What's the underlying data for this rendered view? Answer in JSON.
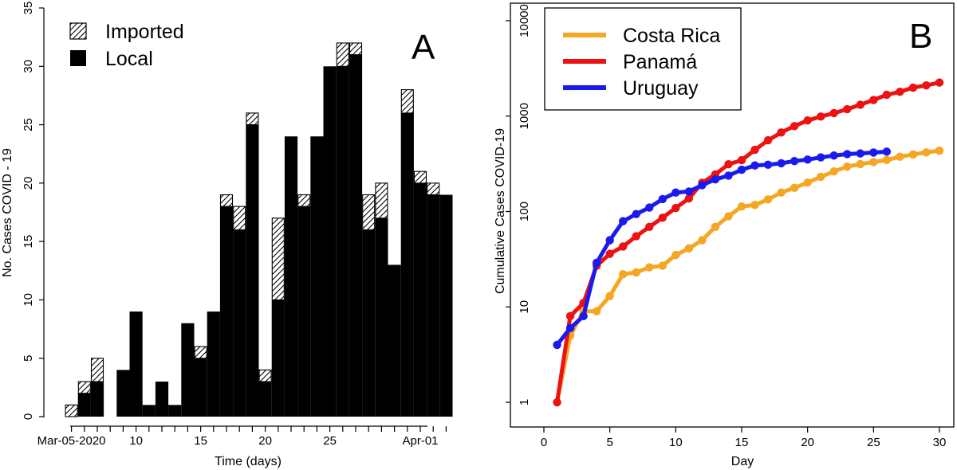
{
  "chart_data": [
    {
      "type": "bar",
      "panel_label": "A",
      "stacked": true,
      "xlabel": "Time (days)",
      "ylabel": "No. Cases COVID - 19",
      "ylim": [
        0,
        35
      ],
      "yticks": [
        "0",
        "5",
        "10",
        "15",
        "20",
        "25",
        "30",
        "35"
      ],
      "xtick_labels": [
        {
          "day_index": 0,
          "label": "Mar-05-2020"
        },
        {
          "day_index": 5,
          "label": "10"
        },
        {
          "day_index": 10,
          "label": "15"
        },
        {
          "day_index": 15,
          "label": "20"
        },
        {
          "day_index": 20,
          "label": "25"
        },
        {
          "day_index": 27,
          "label": "Apr-01"
        }
      ],
      "legend": {
        "placement": "top-left",
        "entries": [
          "Imported",
          "Local"
        ]
      },
      "series": [
        {
          "name": "Local",
          "fill": "#000000",
          "values": [
            0,
            2,
            3,
            0,
            4,
            9,
            1,
            3,
            1,
            8,
            5,
            9,
            18,
            16,
            25,
            3,
            10,
            24,
            18,
            24,
            30,
            30,
            31,
            16,
            17,
            13,
            26,
            20,
            19,
            19
          ]
        },
        {
          "name": "Imported",
          "fill": "hatched",
          "values": [
            1,
            1,
            2,
            0,
            0,
            0,
            0,
            0,
            0,
            0,
            1,
            0,
            1,
            2,
            1,
            1,
            7,
            0,
            1,
            0,
            0,
            2,
            1,
            3,
            3,
            0,
            2,
            1,
            1,
            0
          ]
        }
      ]
    },
    {
      "type": "line",
      "panel_label": "B",
      "y_scale": "log",
      "xlabel": "Day",
      "ylabel": "Cumulative Cases COVID-19",
      "xlim": [
        0,
        30
      ],
      "ylim": [
        1,
        10000
      ],
      "xticks": [
        "0",
        "5",
        "10",
        "15",
        "20",
        "25",
        "30"
      ],
      "yticks": [
        "1",
        "10",
        "100",
        "1000",
        "10000"
      ],
      "legend": {
        "placement": "top-left",
        "entries": [
          "Costa Rica",
          "Panamá",
          "Uruguay"
        ]
      },
      "series": [
        {
          "name": "Costa Rica",
          "color": "#f5a623",
          "x": [
            1,
            2,
            3,
            4,
            5,
            6,
            7,
            8,
            9,
            10,
            11,
            12,
            13,
            14,
            15,
            16,
            17,
            18,
            19,
            20,
            21,
            22,
            23,
            24,
            25,
            26,
            27,
            28,
            29,
            30
          ],
          "y": [
            1,
            5,
            9,
            9,
            13,
            22,
            23,
            26,
            27,
            35,
            41,
            50,
            69,
            89,
            113,
            117,
            134,
            158,
            177,
            201,
            231,
            263,
            295,
            314,
            330,
            347,
            375,
            396,
            416,
            435
          ]
        },
        {
          "name": "Panamá",
          "color": "#ee1111",
          "x": [
            1,
            2,
            3,
            4,
            5,
            6,
            7,
            8,
            9,
            10,
            11,
            12,
            13,
            14,
            15,
            16,
            17,
            18,
            19,
            20,
            21,
            22,
            23,
            24,
            25,
            26,
            27,
            28,
            29,
            30
          ],
          "y": [
            1,
            8,
            11,
            27,
            36,
            43,
            55,
            69,
            86,
            109,
            137,
            200,
            245,
            313,
            345,
            443,
            558,
            674,
            786,
            901,
            989,
            1075,
            1181,
            1317,
            1475,
            1673,
            1801,
            1988,
            2100,
            2249
          ]
        },
        {
          "name": "Uruguay",
          "color": "#1a1aee",
          "x": [
            1,
            2,
            3,
            4,
            5,
            6,
            7,
            8,
            9,
            10,
            11,
            12,
            13,
            14,
            15,
            16,
            17,
            18,
            19,
            20,
            21,
            22,
            23,
            24,
            25,
            26
          ],
          "y": [
            4,
            6,
            8,
            29,
            50,
            79,
            94,
            110,
            135,
            158,
            162,
            189,
            217,
            238,
            274,
            304,
            309,
            320,
            338,
            350,
            369,
            386,
            400,
            406,
            415,
            424
          ]
        }
      ]
    }
  ]
}
